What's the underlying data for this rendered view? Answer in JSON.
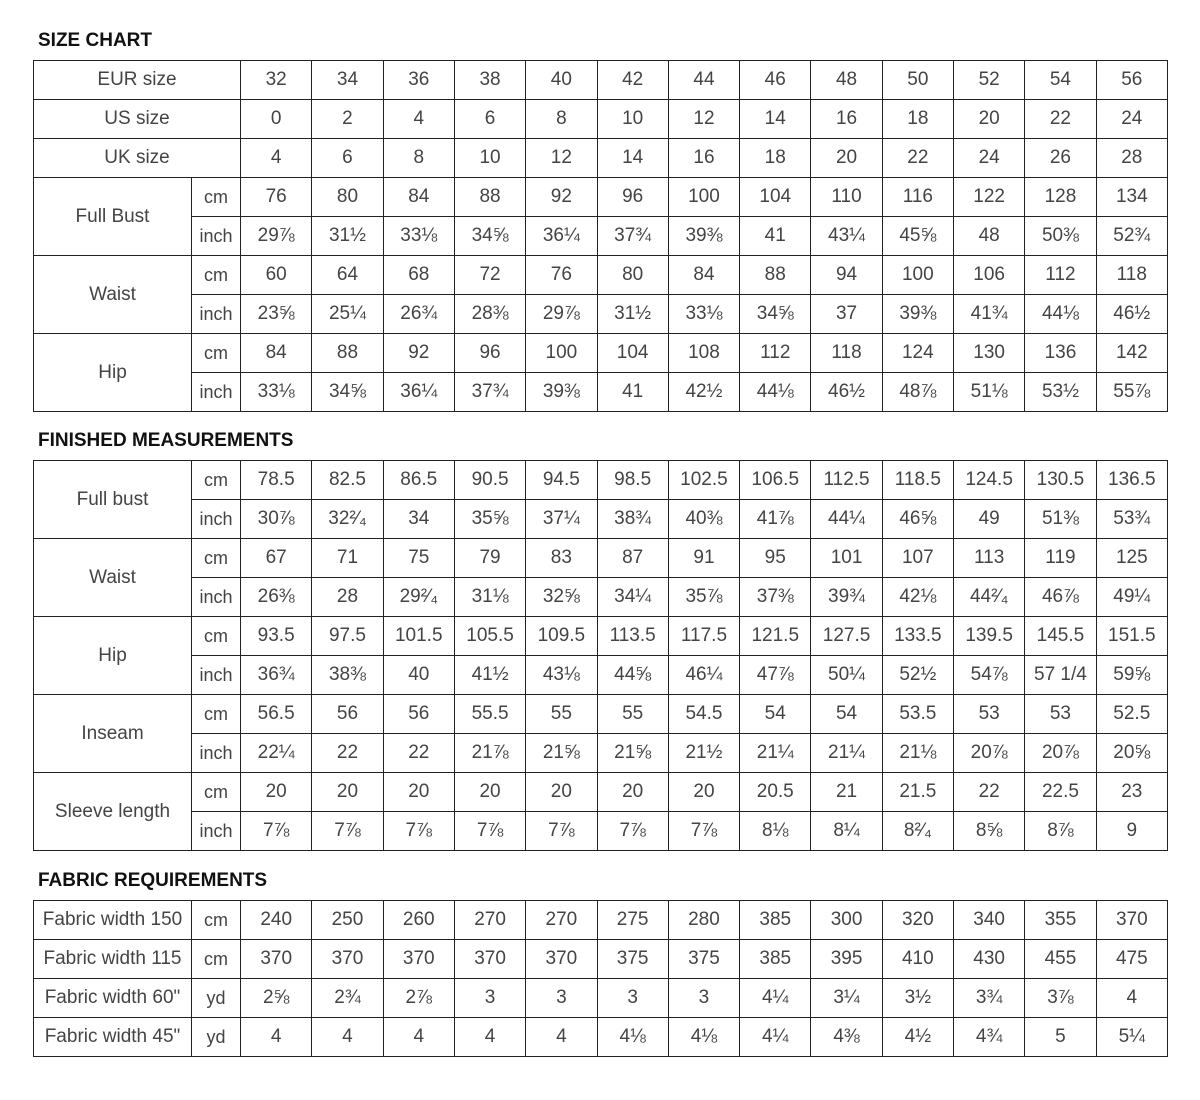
{
  "size_chart": {
    "title": "SIZE CHART",
    "header_rows": [
      {
        "label": "EUR size",
        "values": [
          "32",
          "34",
          "36",
          "38",
          "40",
          "42",
          "44",
          "46",
          "48",
          "50",
          "52",
          "54",
          "56"
        ]
      },
      {
        "label": "US size",
        "values": [
          "0",
          "2",
          "4",
          "6",
          "8",
          "10",
          "12",
          "14",
          "16",
          "18",
          "20",
          "22",
          "24"
        ]
      },
      {
        "label": "UK size",
        "values": [
          "4",
          "6",
          "8",
          "10",
          "12",
          "14",
          "16",
          "18",
          "20",
          "22",
          "24",
          "26",
          "28"
        ]
      }
    ],
    "groups": [
      {
        "label": "Full Bust",
        "rows": [
          {
            "unit": "cm",
            "values": [
              "76",
              "80",
              "84",
              "88",
              "92",
              "96",
              "100",
              "104",
              "110",
              "116",
              "122",
              "128",
              "134"
            ]
          },
          {
            "unit": "inch",
            "values": [
              "29⅞",
              "31½",
              "33⅛",
              "34⅝",
              "36¼",
              "37¾",
              "39⅜",
              "41",
              "43¼",
              "45⅝",
              "48",
              "50⅜",
              "52¾"
            ]
          }
        ]
      },
      {
        "label": "Waist",
        "rows": [
          {
            "unit": "cm",
            "values": [
              "60",
              "64",
              "68",
              "72",
              "76",
              "80",
              "84",
              "88",
              "94",
              "100",
              "106",
              "112",
              "118"
            ]
          },
          {
            "unit": "inch",
            "values": [
              "23⅝",
              "25¼",
              "26¾",
              "28⅜",
              "29⅞",
              "31½",
              "33⅛",
              "34⅝",
              "37",
              "39⅜",
              "41¾",
              "44⅛",
              "46½"
            ]
          }
        ]
      },
      {
        "label": "Hip",
        "rows": [
          {
            "unit": "cm",
            "values": [
              "84",
              "88",
              "92",
              "96",
              "100",
              "104",
              "108",
              "112",
              "118",
              "124",
              "130",
              "136",
              "142"
            ]
          },
          {
            "unit": "inch",
            "values": [
              "33⅛",
              "34⅝",
              "36¼",
              "37¾",
              "39⅜",
              "41",
              "42½",
              "44⅛",
              "46½",
              "48⅞",
              "51⅛",
              "53½",
              "55⅞"
            ]
          }
        ]
      }
    ]
  },
  "finished_measurements": {
    "title": "FINISHED MEASUREMENTS",
    "groups": [
      {
        "label": "Full bust",
        "rows": [
          {
            "unit": "cm",
            "values": [
              "78.5",
              "82.5",
              "86.5",
              "90.5",
              "94.5",
              "98.5",
              "102.5",
              "106.5",
              "112.5",
              "118.5",
              "124.5",
              "130.5",
              "136.5"
            ]
          },
          {
            "unit": "inch",
            "values": [
              "30⅞",
              "32²⁄₄",
              "34",
              "35⅝",
              "37¼",
              "38¾",
              "40⅜",
              "41⅞",
              "44¼",
              "46⅝",
              "49",
              "51⅜",
              "53¾"
            ]
          }
        ]
      },
      {
        "label": "Waist",
        "rows": [
          {
            "unit": "cm",
            "values": [
              "67",
              "71",
              "75",
              "79",
              "83",
              "87",
              "91",
              "95",
              "101",
              "107",
              "113",
              "119",
              "125"
            ]
          },
          {
            "unit": "inch",
            "values": [
              "26⅜",
              "28",
              "29²⁄₄",
              "31⅛",
              "32⅝",
              "34¼",
              "35⅞",
              "37⅜",
              "39¾",
              "42⅛",
              "44²⁄₄",
              "46⅞",
              "49¼"
            ]
          }
        ]
      },
      {
        "label": "Hip",
        "rows": [
          {
            "unit": "cm",
            "values": [
              "93.5",
              "97.5",
              "101.5",
              "105.5",
              "109.5",
              "113.5",
              "117.5",
              "121.5",
              "127.5",
              "133.5",
              "139.5",
              "145.5",
              "151.5"
            ]
          },
          {
            "unit": "inch",
            "values": [
              "36¾",
              "38⅜",
              "40",
              "41½",
              "43⅛",
              "44⅝",
              "46¼",
              "47⅞",
              "50¼",
              "52½",
              "54⅞",
              "57 1/4",
              "59⅝"
            ]
          }
        ]
      },
      {
        "label": "Inseam",
        "rows": [
          {
            "unit": "cm",
            "values": [
              "56.5",
              "56",
              "56",
              "55.5",
              "55",
              "55",
              "54.5",
              "54",
              "54",
              "53.5",
              "53",
              "53",
              "52.5"
            ]
          },
          {
            "unit": "inch",
            "values": [
              "22¼",
              "22",
              "22",
              "21⅞",
              "21⅝",
              "21⅝",
              "21½",
              "21¼",
              "21¼",
              "21⅛",
              "20⅞",
              "20⅞",
              "20⅝"
            ]
          }
        ]
      },
      {
        "label": "Sleeve length",
        "rows": [
          {
            "unit": "cm",
            "values": [
              "20",
              "20",
              "20",
              "20",
              "20",
              "20",
              "20",
              "20.5",
              "21",
              "21.5",
              "22",
              "22.5",
              "23"
            ]
          },
          {
            "unit": "inch",
            "values": [
              "7⅞",
              "7⅞",
              "7⅞",
              "7⅞",
              "7⅞",
              "7⅞",
              "7⅞",
              "8⅛",
              "8¼",
              "8²⁄₄",
              "8⅝",
              "8⅞",
              "9"
            ]
          }
        ]
      }
    ]
  },
  "fabric_requirements": {
    "title": "FABRIC REQUIREMENTS",
    "rows": [
      {
        "label": "Fabric width 150",
        "unit": "cm",
        "values": [
          "240",
          "250",
          "260",
          "270",
          "270",
          "275",
          "280",
          "385",
          "300",
          "320",
          "340",
          "355",
          "370"
        ]
      },
      {
        "label": "Fabric width 115",
        "unit": "cm",
        "values": [
          "370",
          "370",
          "370",
          "370",
          "370",
          "375",
          "375",
          "385",
          "395",
          "410",
          "430",
          "455",
          "475"
        ]
      },
      {
        "label": "Fabric width 60\"",
        "unit": "yd",
        "values": [
          "2⅝",
          "2¾",
          "2⅞",
          "3",
          "3",
          "3",
          "3",
          "4¼",
          "3¼",
          "3½",
          "3¾",
          "3⅞",
          "4"
        ]
      },
      {
        "label": "Fabric width 45\"",
        "unit": "yd",
        "values": [
          "4",
          "4",
          "4",
          "4",
          "4",
          "4⅛",
          "4⅛",
          "4¼",
          "4⅜",
          "4½",
          "4¾",
          "5",
          "5¼"
        ]
      }
    ]
  }
}
